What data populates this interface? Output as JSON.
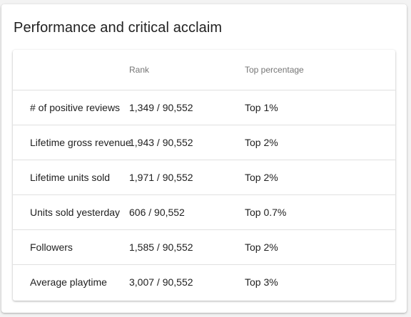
{
  "card": {
    "title": "Performance and critical acclaim"
  },
  "table": {
    "headers": [
      "",
      "Rank",
      "Top percentage"
    ],
    "rows": [
      {
        "metric": "# of positive reviews",
        "rank": "1,349 / 90,552",
        "top": "Top 1%"
      },
      {
        "metric": "Lifetime gross revenue",
        "rank": "1,943 / 90,552",
        "top": "Top 2%"
      },
      {
        "metric": "Lifetime units sold",
        "rank": "1,971 / 90,552",
        "top": "Top 2%"
      },
      {
        "metric": "Units sold yesterday",
        "rank": "606 / 90,552",
        "top": "Top 0.7%"
      },
      {
        "metric": "Followers",
        "rank": "1,585 / 90,552",
        "top": "Top 2%"
      },
      {
        "metric": "Average playtime",
        "rank": "3,007 / 90,552",
        "top": "Top 3%"
      }
    ]
  }
}
